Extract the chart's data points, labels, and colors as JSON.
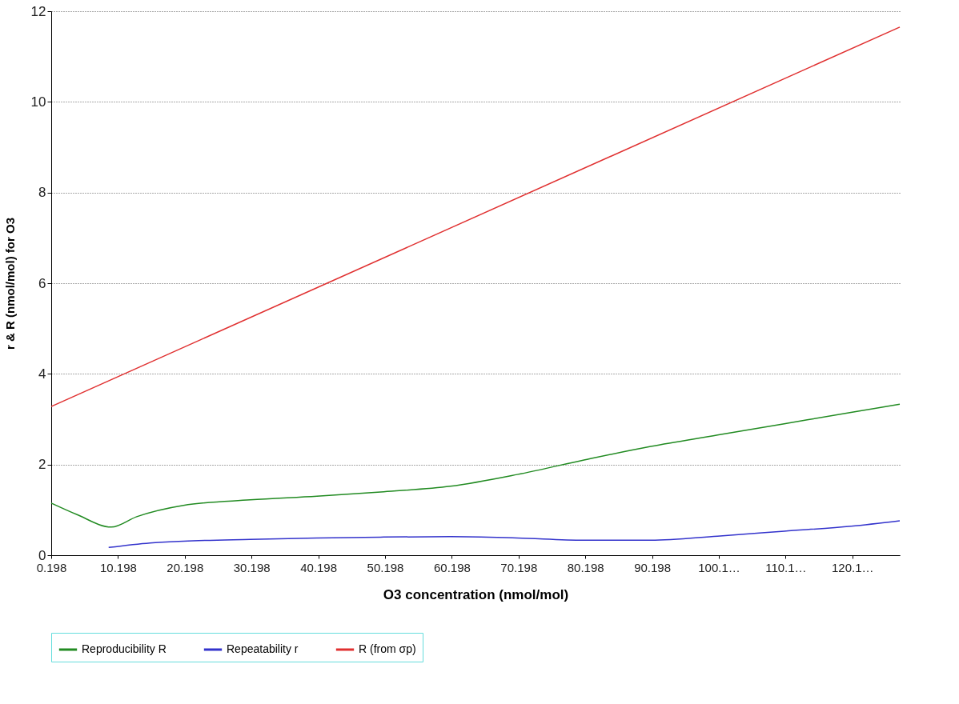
{
  "chart_data": {
    "type": "line",
    "xlabel": "O3 concentration (nmol/mol)",
    "ylabel": "r & R (nmol/mol) for O3",
    "xlim": [
      0.198,
      127.3
    ],
    "ylim": [
      0,
      12
    ],
    "xticks": [
      0.198,
      10.198,
      20.198,
      30.198,
      40.198,
      50.198,
      60.198,
      70.198,
      80.198,
      90.198,
      {
        "value": 100.198,
        "label": "100.1…"
      },
      {
        "value": 110.198,
        "label": "110.1…"
      },
      {
        "value": 120.198,
        "label": "120.1…"
      }
    ],
    "yticks": [
      0,
      2,
      4,
      6,
      8,
      10,
      12
    ],
    "grid": "y",
    "legend": "bottom",
    "marker": "none",
    "line_style": "solid",
    "series": [
      {
        "name": "Reproducibility R",
        "color": "#228b22",
        "x": [
          0.198,
          4,
          9.2,
          13,
          20,
          30,
          40,
          50,
          60,
          70,
          80,
          90,
          100,
          110,
          120,
          127.3
        ],
        "values": [
          1.15,
          0.9,
          0.62,
          0.85,
          1.1,
          1.22,
          1.3,
          1.4,
          1.52,
          1.78,
          2.1,
          2.4,
          2.65,
          2.9,
          3.15,
          3.33
        ]
      },
      {
        "name": "Repeatability r",
        "color": "#3333cc",
        "x": [
          8.8,
          15,
          20,
          30,
          40,
          50,
          60,
          70,
          80,
          90,
          100,
          110,
          120,
          127.3
        ],
        "values": [
          0.17,
          0.27,
          0.31,
          0.35,
          0.38,
          0.4,
          0.41,
          0.38,
          0.33,
          0.33,
          0.42,
          0.53,
          0.64,
          0.76
        ]
      },
      {
        "name": "R (from σp)",
        "color": "#e03030",
        "x": [
          0.198,
          127.3
        ],
        "values": [
          3.28,
          11.65
        ]
      }
    ]
  }
}
